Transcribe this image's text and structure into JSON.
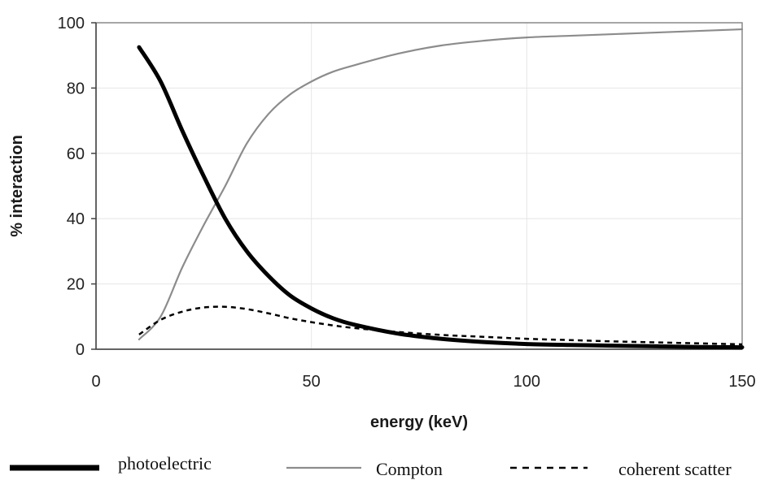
{
  "chart_data": {
    "type": "line",
    "title": "",
    "xlabel": "energy (keV)",
    "ylabel": "% interaction",
    "xlim": [
      0,
      150
    ],
    "ylim": [
      0,
      100
    ],
    "xticks": [
      0,
      50,
      100,
      150
    ],
    "yticks": [
      0,
      20,
      40,
      60,
      80,
      100
    ],
    "grid": true,
    "legend_position": "bottom",
    "series": [
      {
        "name": "photoelectric",
        "color": "#000000",
        "style": "solid-thick",
        "x": [
          10,
          15,
          20,
          25,
          30,
          35,
          40,
          45,
          50,
          55,
          60,
          70,
          80,
          90,
          100,
          110,
          120,
          130,
          140,
          150
        ],
        "y": [
          92.5,
          82,
          67,
          53,
          40,
          30,
          22.5,
          16.5,
          12.5,
          9.5,
          7.5,
          4.8,
          3.2,
          2.2,
          1.6,
          1.3,
          1.1,
          0.9,
          0.7,
          0.6
        ]
      },
      {
        "name": "Compton",
        "color": "#8c8c8c",
        "style": "solid-thin",
        "x": [
          10,
          15,
          20,
          25,
          30,
          35,
          40,
          45,
          50,
          55,
          60,
          70,
          80,
          90,
          100,
          110,
          120,
          130,
          140,
          150
        ],
        "y": [
          3,
          10,
          25,
          38,
          50,
          63,
          72,
          78,
          82,
          85,
          87,
          90.5,
          93,
          94.5,
          95.5,
          96,
          96.5,
          97,
          97.5,
          98
        ]
      },
      {
        "name": "coherent scatter",
        "color": "#000000",
        "style": "dashed",
        "x": [
          10,
          15,
          20,
          25,
          30,
          35,
          40,
          45,
          50,
          55,
          60,
          70,
          80,
          90,
          100,
          110,
          120,
          130,
          140,
          150
        ],
        "y": [
          4.5,
          9,
          11.5,
          12.8,
          13,
          12.3,
          11,
          9.5,
          8.3,
          7.3,
          6.5,
          5.3,
          4.4,
          3.8,
          3.2,
          2.8,
          2.4,
          2.1,
          1.8,
          1.5
        ]
      }
    ]
  }
}
